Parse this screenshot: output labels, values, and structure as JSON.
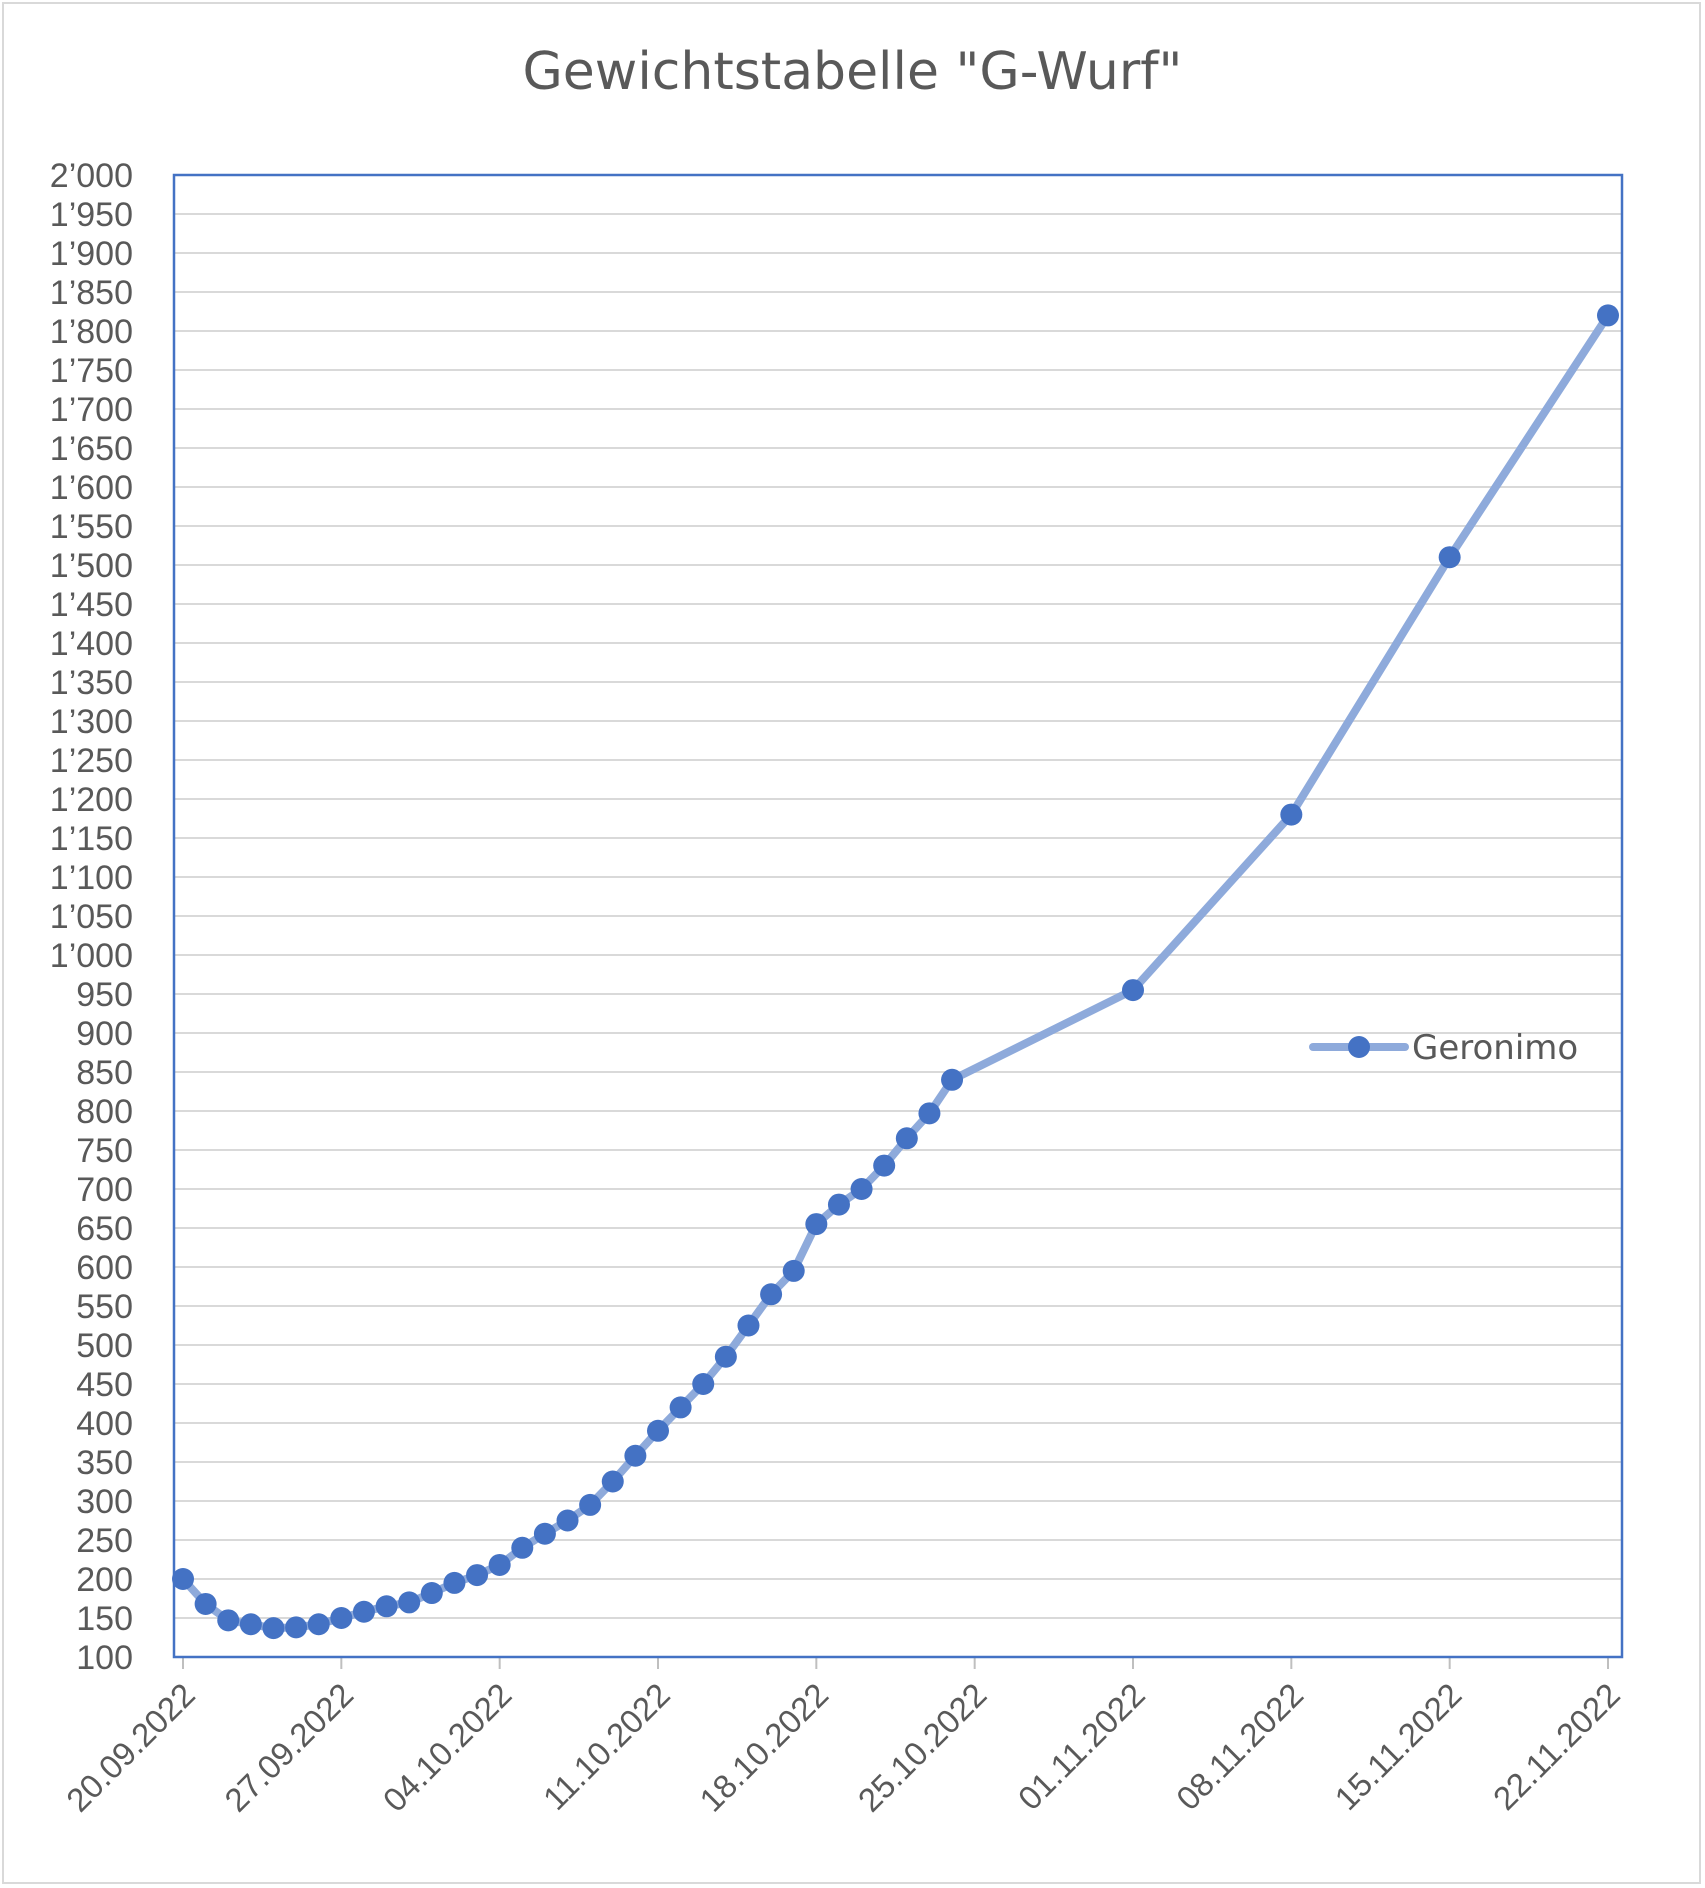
{
  "chart_data": {
    "type": "line",
    "title": "Gewichtstabelle \"G-Wurf\"",
    "xlabel": "",
    "ylabel": "",
    "ylim": [
      100,
      2000
    ],
    "y_tick_step": 50,
    "y_tick_labels": [
      "100",
      "150",
      "200",
      "250",
      "300",
      "350",
      "400",
      "450",
      "500",
      "550",
      "600",
      "650",
      "700",
      "750",
      "800",
      "850",
      "900",
      "950",
      "1’000",
      "1’050",
      "1’100",
      "1’150",
      "1’200",
      "1’250",
      "1’300",
      "1’350",
      "1’400",
      "1’450",
      "1’500",
      "1’550",
      "1’600",
      "1’650",
      "1’700",
      "1’750",
      "1’800",
      "1’850",
      "1’900",
      "1’950",
      "2’000"
    ],
    "xlim": [
      "20.09.2022",
      "23.11.2022"
    ],
    "x_tick_labels": [
      "20.09.2022",
      "27.09.2022",
      "04.10.2022",
      "11.10.2022",
      "18.10.2022",
      "25.10.2022",
      "01.11.2022",
      "08.11.2022",
      "15.11.2022",
      "22.11.2022"
    ],
    "grid": true,
    "legend_position": "right",
    "series": [
      {
        "name": "Geronimo",
        "color": "#4472c4",
        "line_color": "#8eaadb",
        "points": [
          {
            "x": "20.09.2022",
            "y": 200
          },
          {
            "x": "21.09.2022",
            "y": 168
          },
          {
            "x": "22.09.2022",
            "y": 147
          },
          {
            "x": "23.09.2022",
            "y": 142
          },
          {
            "x": "24.09.2022",
            "y": 137
          },
          {
            "x": "25.09.2022",
            "y": 138
          },
          {
            "x": "26.09.2022",
            "y": 142
          },
          {
            "x": "27.09.2022",
            "y": 150
          },
          {
            "x": "28.09.2022",
            "y": 158
          },
          {
            "x": "29.09.2022",
            "y": 165
          },
          {
            "x": "30.09.2022",
            "y": 170
          },
          {
            "x": "01.10.2022",
            "y": 182
          },
          {
            "x": "02.10.2022",
            "y": 195
          },
          {
            "x": "03.10.2022",
            "y": 205
          },
          {
            "x": "04.10.2022",
            "y": 218
          },
          {
            "x": "05.10.2022",
            "y": 240
          },
          {
            "x": "06.10.2022",
            "y": 258
          },
          {
            "x": "07.10.2022",
            "y": 275
          },
          {
            "x": "08.10.2022",
            "y": 295
          },
          {
            "x": "09.10.2022",
            "y": 325
          },
          {
            "x": "10.10.2022",
            "y": 358
          },
          {
            "x": "11.10.2022",
            "y": 390
          },
          {
            "x": "12.10.2022",
            "y": 420
          },
          {
            "x": "13.10.2022",
            "y": 450
          },
          {
            "x": "14.10.2022",
            "y": 485
          },
          {
            "x": "15.10.2022",
            "y": 525
          },
          {
            "x": "16.10.2022",
            "y": 565
          },
          {
            "x": "17.10.2022",
            "y": 595
          },
          {
            "x": "18.10.2022",
            "y": 655
          },
          {
            "x": "19.10.2022",
            "y": 680
          },
          {
            "x": "20.10.2022",
            "y": 700
          },
          {
            "x": "21.10.2022",
            "y": 730
          },
          {
            "x": "22.10.2022",
            "y": 765
          },
          {
            "x": "23.10.2022",
            "y": 797
          },
          {
            "x": "24.10.2022",
            "y": 840
          },
          {
            "x": "01.11.2022",
            "y": 955
          },
          {
            "x": "08.11.2022",
            "y": 1180
          },
          {
            "x": "15.11.2022",
            "y": 1510
          },
          {
            "x": "22.11.2022",
            "y": 1820
          }
        ]
      }
    ]
  }
}
